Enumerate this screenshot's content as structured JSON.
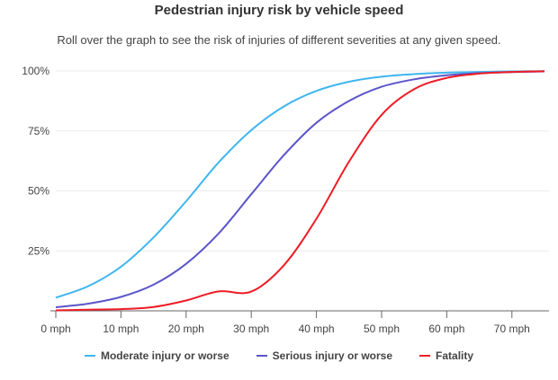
{
  "chart_data": {
    "type": "line",
    "title": "Pedestrian injury risk by vehicle speed",
    "subtitle": "Roll over the graph to see the risk of injuries of different severities at any given speed.",
    "xlabel": "",
    "ylabel": "",
    "x_unit": "mph",
    "xlim": [
      0,
      75
    ],
    "ylim": [
      0,
      100
    ],
    "x_ticks": [
      "0 mph",
      "10 mph",
      "20 mph",
      "30 mph",
      "40 mph",
      "50 mph",
      "60 mph",
      "70 mph"
    ],
    "x_tick_values": [
      0,
      10,
      20,
      30,
      40,
      50,
      60,
      70
    ],
    "y_ticks": [
      "100%",
      "75%",
      "50%",
      "25%"
    ],
    "y_tick_values": [
      100,
      75,
      50,
      25
    ],
    "grid": true,
    "legend_position": "bottom-center",
    "x": [
      0,
      5,
      10,
      15,
      20,
      25,
      30,
      35,
      40,
      45,
      50,
      55,
      60,
      65,
      70,
      75
    ],
    "series": [
      {
        "name": "Moderate injury or worse",
        "color": "#3fb5f0",
        "values": [
          5.5,
          10.3,
          18.4,
          30.6,
          45.7,
          61.9,
          75.3,
          85.2,
          91.7,
          95.5,
          97.6,
          98.7,
          99.3,
          99.6,
          99.8,
          99.9
        ]
      },
      {
        "name": "Serious injury or worse",
        "color": "#5b55c9",
        "values": [
          1.5,
          3.0,
          5.8,
          10.9,
          19.6,
          32.3,
          48.6,
          64.9,
          78.4,
          87.5,
          93.4,
          96.5,
          98.2,
          99.1,
          99.5,
          99.8
        ]
      },
      {
        "name": "Fatality",
        "color": "#ee1c25",
        "values": [
          0.2,
          0.5,
          0.7,
          1.6,
          4.3,
          8.1,
          8.0,
          19.0,
          38.4,
          62.2,
          81.7,
          92.4,
          97.1,
          98.9,
          99.6,
          99.9
        ]
      }
    ]
  },
  "legend": {
    "items": [
      {
        "label": "Moderate injury or worse",
        "color": "#3fb5f0"
      },
      {
        "label": "Serious injury or worse",
        "color": "#5b55c9"
      },
      {
        "label": "Fatality",
        "color": "#ee1c25"
      }
    ]
  }
}
